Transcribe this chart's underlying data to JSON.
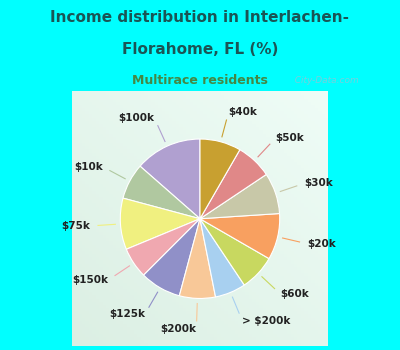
{
  "title_line1": "Income distribution in Interlachen-",
  "title_line2": "Florahome, FL (%)",
  "subtitle": "Multirace residents",
  "title_color": "#1a5555",
  "subtitle_color": "#448844",
  "background_color": "#00ffff",
  "chart_bg": "#d8ede0",
  "labels": [
    "$100k",
    "$10k",
    "$75k",
    "$150k",
    "$125k",
    "$200k",
    "> $200k",
    "$60k",
    "$20k",
    "$30k",
    "$50k",
    "$40k"
  ],
  "values": [
    13,
    7,
    10,
    6,
    8,
    7,
    6,
    7,
    9,
    8,
    7,
    8
  ],
  "colors": [
    "#b0a0d0",
    "#b0c8a0",
    "#f0f080",
    "#f0a8b0",
    "#9090c8",
    "#f8c898",
    "#a8d0f0",
    "#c8d860",
    "#f8a060",
    "#c8c8a8",
    "#e08888",
    "#c8a030"
  ],
  "label_fontsize": 7.5,
  "watermark": "  City-Data.com",
  "startangle": 90
}
